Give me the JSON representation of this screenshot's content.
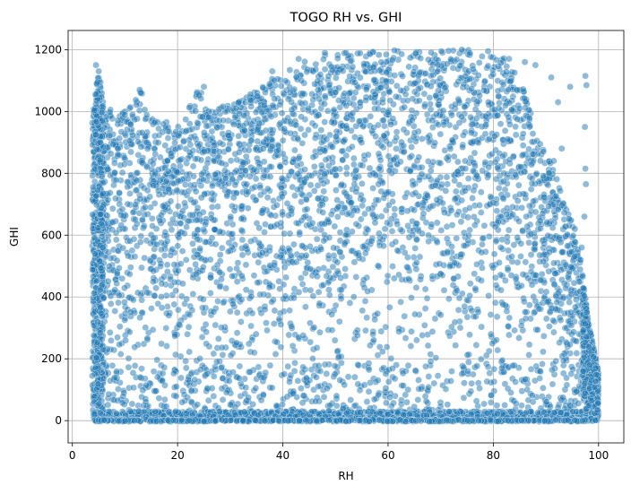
{
  "chart_data": {
    "type": "scatter",
    "title": "TOGO RH vs. GHI",
    "xlabel": "RH",
    "ylabel": "GHI",
    "xlim": [
      -0.8,
      104.8
    ],
    "ylim": [
      -72,
      1262
    ],
    "xticks": [
      0,
      20,
      40,
      60,
      80,
      100
    ],
    "yticks": [
      0,
      200,
      400,
      600,
      800,
      1000,
      1200
    ],
    "grid": true,
    "legend": "none",
    "point_color": "#1f77b4",
    "point_edge_color": "#ffffff",
    "point_alpha": 0.5,
    "density": "dense cloud covering RH approximately 4 to 100 and GHI approximately 0 to 1200, with a large concentration of points near GHI 0",
    "upper_envelope": [
      [
        4,
        1000
      ],
      [
        5,
        1150
      ],
      [
        6,
        1010
      ],
      [
        10,
        1000
      ],
      [
        13,
        1070
      ],
      [
        16,
        980
      ],
      [
        20,
        950
      ],
      [
        24,
        1080
      ],
      [
        26,
        1010
      ],
      [
        30,
        1020
      ],
      [
        35,
        1070
      ],
      [
        40,
        1130
      ],
      [
        45,
        1170
      ],
      [
        50,
        1190
      ],
      [
        55,
        1195
      ],
      [
        60,
        1200
      ],
      [
        65,
        1200
      ],
      [
        70,
        1200
      ],
      [
        75,
        1200
      ],
      [
        78,
        1195
      ],
      [
        80,
        1190
      ],
      [
        83,
        1165
      ],
      [
        85,
        1120
      ],
      [
        87,
        1000
      ],
      [
        89,
        900
      ],
      [
        90,
        860
      ],
      [
        92,
        820
      ],
      [
        93,
        720
      ],
      [
        94,
        690
      ],
      [
        95,
        640
      ],
      [
        96,
        560
      ],
      [
        97,
        470
      ],
      [
        98,
        330
      ],
      [
        99,
        240
      ],
      [
        100,
        160
      ]
    ],
    "lower_bound": 0,
    "outliers": [
      [
        4.5,
        1150
      ],
      [
        5,
        1130
      ],
      [
        12.8,
        1070
      ],
      [
        13,
        1060
      ],
      [
        25,
        1080
      ],
      [
        38,
        1130
      ],
      [
        43,
        1170
      ],
      [
        48,
        1190
      ],
      [
        52,
        1190
      ],
      [
        74,
        1200
      ],
      [
        79,
        1195
      ],
      [
        83,
        1170
      ],
      [
        86,
        1160
      ],
      [
        88,
        1150
      ],
      [
        91,
        1110
      ],
      [
        92.3,
        1030
      ],
      [
        94.6,
        1080
      ],
      [
        97.5,
        1115
      ],
      [
        97.7,
        1085
      ],
      [
        97.4,
        950
      ],
      [
        97.5,
        815
      ],
      [
        97.6,
        765
      ],
      [
        96.8,
        560
      ],
      [
        96.6,
        520
      ],
      [
        97.3,
        660
      ],
      [
        95.5,
        620
      ],
      [
        93,
        880
      ],
      [
        91.5,
        840
      ],
      [
        90.6,
        800
      ],
      [
        89.5,
        870
      ]
    ]
  }
}
